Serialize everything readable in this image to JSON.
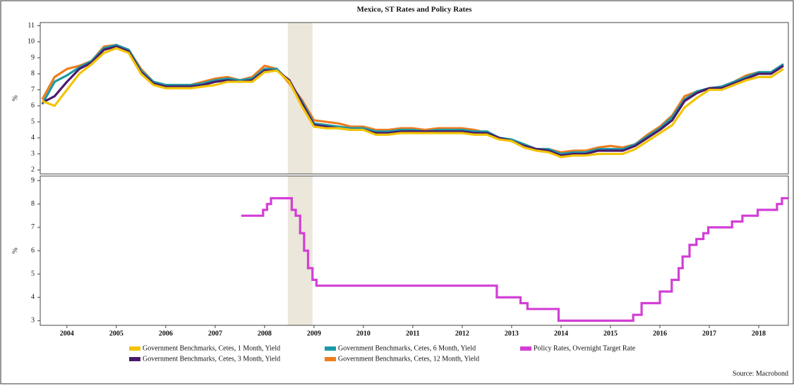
{
  "chart_data": [
    {
      "type": "line",
      "title": "Mexico, ST Rates and Policy Rates",
      "ylabel": "%",
      "xlim": [
        2003.96,
        2019.1
      ],
      "ylim": [
        1.75,
        11.2
      ],
      "yticks": [
        2,
        3,
        4,
        5,
        6,
        7,
        8,
        9,
        10,
        11
      ],
      "grid": false,
      "shaded_x": [
        2008.97,
        2009.47
      ],
      "shade_color": "#ebe7da",
      "x": [
        2004.0,
        2004.25,
        2004.5,
        2004.75,
        2005.0,
        2005.25,
        2005.5,
        2005.75,
        2006.0,
        2006.25,
        2006.5,
        2006.75,
        2007.0,
        2007.25,
        2007.5,
        2007.75,
        2008.0,
        2008.25,
        2008.5,
        2008.75,
        2009.0,
        2009.25,
        2009.5,
        2009.75,
        2010.0,
        2010.25,
        2010.5,
        2010.75,
        2011.0,
        2011.25,
        2011.5,
        2011.75,
        2012.0,
        2012.25,
        2012.5,
        2012.75,
        2013.0,
        2013.25,
        2013.5,
        2013.75,
        2014.0,
        2014.25,
        2014.5,
        2014.75,
        2015.0,
        2015.25,
        2015.5,
        2015.75,
        2016.0,
        2016.25,
        2016.5,
        2016.75,
        2017.0,
        2017.25,
        2017.5,
        2017.75,
        2018.0,
        2018.25,
        2018.5,
        2018.75,
        2019.0
      ],
      "series": [
        {
          "name": "Government Benchmarks, Cetes, 1 Month, Yield",
          "color": "#f2c400",
          "values": [
            6.3,
            6.0,
            7.0,
            8.0,
            8.6,
            9.3,
            9.6,
            9.3,
            8.0,
            7.3,
            7.1,
            7.1,
            7.1,
            7.2,
            7.3,
            7.5,
            7.5,
            7.5,
            8.1,
            8.2,
            7.5,
            6.0,
            4.7,
            4.6,
            4.6,
            4.5,
            4.5,
            4.2,
            4.2,
            4.3,
            4.3,
            4.3,
            4.3,
            4.3,
            4.3,
            4.2,
            4.2,
            3.9,
            3.8,
            3.4,
            3.2,
            3.1,
            2.8,
            2.9,
            2.9,
            3.0,
            3.0,
            3.0,
            3.3,
            3.8,
            4.3,
            4.8,
            5.9,
            6.5,
            7.0,
            7.0,
            7.3,
            7.6,
            7.8,
            7.8,
            8.3
          ]
        },
        {
          "name": "Government Benchmarks, Cetes, 3 Month, Yield",
          "color": "#4a1a6b",
          "values": [
            6.2,
            6.6,
            7.5,
            8.3,
            8.7,
            9.5,
            9.7,
            9.4,
            8.1,
            7.4,
            7.2,
            7.2,
            7.2,
            7.3,
            7.5,
            7.6,
            7.5,
            7.6,
            8.2,
            8.2,
            7.6,
            6.2,
            4.8,
            4.7,
            4.6,
            4.5,
            4.5,
            4.3,
            4.3,
            4.4,
            4.4,
            4.4,
            4.4,
            4.4,
            4.4,
            4.3,
            4.3,
            4.0,
            3.8,
            3.5,
            3.3,
            3.2,
            2.9,
            3.0,
            3.0,
            3.2,
            3.2,
            3.2,
            3.5,
            4.0,
            4.5,
            5.1,
            6.3,
            6.8,
            7.1,
            7.1,
            7.4,
            7.7,
            8.0,
            8.0,
            8.5
          ]
        },
        {
          "name": "Government Benchmarks, Cetes, 6 Month, Yield",
          "color": "#1b9aa6",
          "values": [
            6.1,
            7.5,
            7.9,
            8.4,
            8.8,
            9.6,
            9.8,
            9.5,
            8.2,
            7.5,
            7.3,
            7.3,
            7.3,
            7.4,
            7.6,
            7.7,
            7.6,
            7.7,
            8.3,
            8.3,
            7.5,
            6.3,
            4.9,
            4.8,
            4.7,
            4.6,
            4.6,
            4.4,
            4.4,
            4.5,
            4.5,
            4.4,
            4.5,
            4.5,
            4.5,
            4.4,
            4.4,
            4.0,
            3.9,
            3.6,
            3.3,
            3.3,
            3.0,
            3.1,
            3.1,
            3.3,
            3.3,
            3.3,
            3.6,
            4.1,
            4.6,
            5.3,
            6.4,
            6.9,
            7.1,
            7.2,
            7.5,
            7.8,
            8.1,
            8.1,
            8.6
          ]
        },
        {
          "name": "Government Benchmarks, Cetes, 12 Month, Yield",
          "color": "#ee7d1f",
          "values": [
            6.4,
            7.8,
            8.3,
            8.5,
            8.8,
            9.7,
            9.8,
            9.5,
            8.3,
            7.5,
            7.3,
            7.3,
            7.3,
            7.5,
            7.7,
            7.8,
            7.6,
            7.8,
            8.5,
            8.3,
            7.4,
            6.4,
            5.1,
            5.0,
            4.9,
            4.7,
            4.7,
            4.5,
            4.5,
            4.6,
            4.6,
            4.5,
            4.6,
            4.6,
            4.6,
            4.5,
            4.3,
            4.0,
            3.8,
            3.6,
            3.3,
            3.3,
            3.1,
            3.2,
            3.2,
            3.4,
            3.5,
            3.4,
            3.6,
            4.2,
            4.7,
            5.4,
            6.6,
            6.9,
            7.1,
            7.2,
            7.5,
            7.9,
            8.1,
            8.1,
            8.6
          ]
        }
      ]
    },
    {
      "type": "line",
      "drawstyle": "steps-post",
      "ylabel": "%",
      "xlim": [
        2003.96,
        2019.1
      ],
      "ylim": [
        2.8,
        9.2
      ],
      "yticks": [
        3,
        4,
        5,
        6,
        7,
        8,
        9
      ],
      "grid": false,
      "shaded_x": [
        2008.97,
        2009.47
      ],
      "shade_color": "#ebe7da",
      "xticks": [
        {
          "value": 2004.5,
          "label": "2004"
        },
        {
          "value": 2005.5,
          "label": "2005"
        },
        {
          "value": 2006.5,
          "label": "2006"
        },
        {
          "value": 2007.5,
          "label": "2007"
        },
        {
          "value": 2008.5,
          "label": "2008"
        },
        {
          "value": 2009.5,
          "label": "2009"
        },
        {
          "value": 2010.5,
          "label": "2010"
        },
        {
          "value": 2011.5,
          "label": "2011"
        },
        {
          "value": 2012.5,
          "label": "2012"
        },
        {
          "value": 2013.5,
          "label": "2013"
        },
        {
          "value": 2014.5,
          "label": "2014"
        },
        {
          "value": 2015.5,
          "label": "2015"
        },
        {
          "value": 2016.5,
          "label": "2016"
        },
        {
          "value": 2017.5,
          "label": "2017"
        },
        {
          "value": 2018.5,
          "label": "2018"
        }
      ],
      "x": [
        2008.05,
        2008.47,
        2008.55,
        2008.63,
        2009.05,
        2009.13,
        2009.22,
        2009.3,
        2009.38,
        2009.47,
        2009.55,
        2013.2,
        2013.68,
        2013.82,
        2014.45,
        2015.96,
        2016.13,
        2016.5,
        2016.74,
        2016.88,
        2016.96,
        2017.1,
        2017.24,
        2017.38,
        2017.48,
        2017.96,
        2018.17,
        2018.48,
        2018.87,
        2018.97
      ],
      "series": [
        {
          "name": "Policy Rates, Overnight Target Rate",
          "color": "#d23fd6",
          "values": [
            7.5,
            7.75,
            8.0,
            8.25,
            7.75,
            7.5,
            6.75,
            6.0,
            5.25,
            4.75,
            4.5,
            4.0,
            3.75,
            3.5,
            3.0,
            3.25,
            3.75,
            4.25,
            4.75,
            5.25,
            5.75,
            6.25,
            6.5,
            6.75,
            7.0,
            7.25,
            7.5,
            7.75,
            8.0,
            8.25
          ]
        }
      ]
    }
  ],
  "source": "Source: Macrobond"
}
